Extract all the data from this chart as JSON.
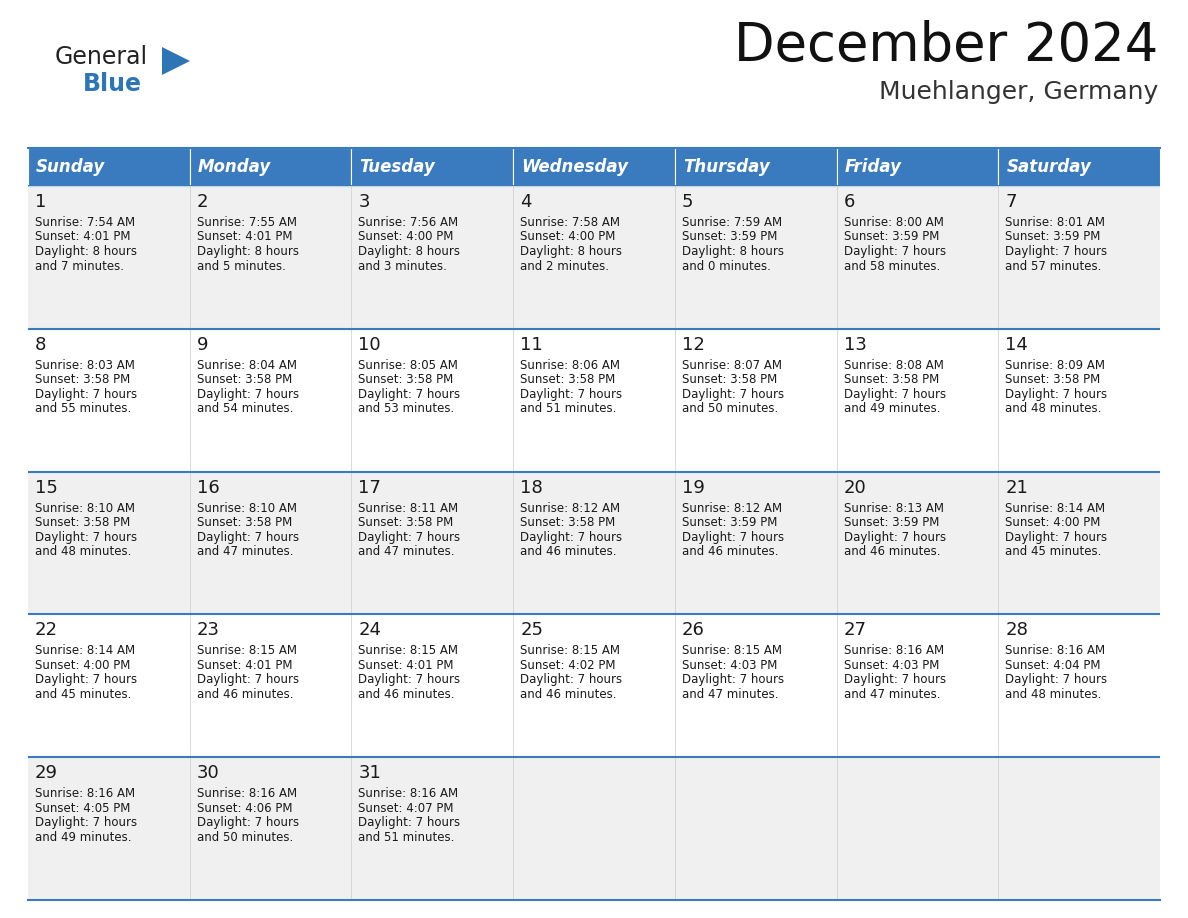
{
  "title": "December 2024",
  "subtitle": "Muehlanger, Germany",
  "header_color": "#3a7abf",
  "header_text_color": "#ffffff",
  "cell_bg_odd": "#f0f0f0",
  "cell_bg_even": "#ffffff",
  "separator_color": "#3a7abf",
  "text_color": "#1a1a1a",
  "day_headers": [
    "Sunday",
    "Monday",
    "Tuesday",
    "Wednesday",
    "Thursday",
    "Friday",
    "Saturday"
  ],
  "logo_general_color": "#222222",
  "logo_blue_color": "#2e75b6",
  "logo_triangle_color": "#2e75b6",
  "weeks": [
    [
      {
        "day": "1",
        "sunrise": "7:54 AM",
        "sunset": "4:01 PM",
        "daylight": "8 hours",
        "daylight2": "and 7 minutes."
      },
      {
        "day": "2",
        "sunrise": "7:55 AM",
        "sunset": "4:01 PM",
        "daylight": "8 hours",
        "daylight2": "and 5 minutes."
      },
      {
        "day": "3",
        "sunrise": "7:56 AM",
        "sunset": "4:00 PM",
        "daylight": "8 hours",
        "daylight2": "and 3 minutes."
      },
      {
        "day": "4",
        "sunrise": "7:58 AM",
        "sunset": "4:00 PM",
        "daylight": "8 hours",
        "daylight2": "and 2 minutes."
      },
      {
        "day": "5",
        "sunrise": "7:59 AM",
        "sunset": "3:59 PM",
        "daylight": "8 hours",
        "daylight2": "and 0 minutes."
      },
      {
        "day": "6",
        "sunrise": "8:00 AM",
        "sunset": "3:59 PM",
        "daylight": "7 hours",
        "daylight2": "and 58 minutes."
      },
      {
        "day": "7",
        "sunrise": "8:01 AM",
        "sunset": "3:59 PM",
        "daylight": "7 hours",
        "daylight2": "and 57 minutes."
      }
    ],
    [
      {
        "day": "8",
        "sunrise": "8:03 AM",
        "sunset": "3:58 PM",
        "daylight": "7 hours",
        "daylight2": "and 55 minutes."
      },
      {
        "day": "9",
        "sunrise": "8:04 AM",
        "sunset": "3:58 PM",
        "daylight": "7 hours",
        "daylight2": "and 54 minutes."
      },
      {
        "day": "10",
        "sunrise": "8:05 AM",
        "sunset": "3:58 PM",
        "daylight": "7 hours",
        "daylight2": "and 53 minutes."
      },
      {
        "day": "11",
        "sunrise": "8:06 AM",
        "sunset": "3:58 PM",
        "daylight": "7 hours",
        "daylight2": "and 51 minutes."
      },
      {
        "day": "12",
        "sunrise": "8:07 AM",
        "sunset": "3:58 PM",
        "daylight": "7 hours",
        "daylight2": "and 50 minutes."
      },
      {
        "day": "13",
        "sunrise": "8:08 AM",
        "sunset": "3:58 PM",
        "daylight": "7 hours",
        "daylight2": "and 49 minutes."
      },
      {
        "day": "14",
        "sunrise": "8:09 AM",
        "sunset": "3:58 PM",
        "daylight": "7 hours",
        "daylight2": "and 48 minutes."
      }
    ],
    [
      {
        "day": "15",
        "sunrise": "8:10 AM",
        "sunset": "3:58 PM",
        "daylight": "7 hours",
        "daylight2": "and 48 minutes."
      },
      {
        "day": "16",
        "sunrise": "8:10 AM",
        "sunset": "3:58 PM",
        "daylight": "7 hours",
        "daylight2": "and 47 minutes."
      },
      {
        "day": "17",
        "sunrise": "8:11 AM",
        "sunset": "3:58 PM",
        "daylight": "7 hours",
        "daylight2": "and 47 minutes."
      },
      {
        "day": "18",
        "sunrise": "8:12 AM",
        "sunset": "3:58 PM",
        "daylight": "7 hours",
        "daylight2": "and 46 minutes."
      },
      {
        "day": "19",
        "sunrise": "8:12 AM",
        "sunset": "3:59 PM",
        "daylight": "7 hours",
        "daylight2": "and 46 minutes."
      },
      {
        "day": "20",
        "sunrise": "8:13 AM",
        "sunset": "3:59 PM",
        "daylight": "7 hours",
        "daylight2": "and 46 minutes."
      },
      {
        "day": "21",
        "sunrise": "8:14 AM",
        "sunset": "4:00 PM",
        "daylight": "7 hours",
        "daylight2": "and 45 minutes."
      }
    ],
    [
      {
        "day": "22",
        "sunrise": "8:14 AM",
        "sunset": "4:00 PM",
        "daylight": "7 hours",
        "daylight2": "and 45 minutes."
      },
      {
        "day": "23",
        "sunrise": "8:15 AM",
        "sunset": "4:01 PM",
        "daylight": "7 hours",
        "daylight2": "and 46 minutes."
      },
      {
        "day": "24",
        "sunrise": "8:15 AM",
        "sunset": "4:01 PM",
        "daylight": "7 hours",
        "daylight2": "and 46 minutes."
      },
      {
        "day": "25",
        "sunrise": "8:15 AM",
        "sunset": "4:02 PM",
        "daylight": "7 hours",
        "daylight2": "and 46 minutes."
      },
      {
        "day": "26",
        "sunrise": "8:15 AM",
        "sunset": "4:03 PM",
        "daylight": "7 hours",
        "daylight2": "and 47 minutes."
      },
      {
        "day": "27",
        "sunrise": "8:16 AM",
        "sunset": "4:03 PM",
        "daylight": "7 hours",
        "daylight2": "and 47 minutes."
      },
      {
        "day": "28",
        "sunrise": "8:16 AM",
        "sunset": "4:04 PM",
        "daylight": "7 hours",
        "daylight2": "and 48 minutes."
      }
    ],
    [
      {
        "day": "29",
        "sunrise": "8:16 AM",
        "sunset": "4:05 PM",
        "daylight": "7 hours",
        "daylight2": "and 49 minutes."
      },
      {
        "day": "30",
        "sunrise": "8:16 AM",
        "sunset": "4:06 PM",
        "daylight": "7 hours",
        "daylight2": "and 50 minutes."
      },
      {
        "day": "31",
        "sunrise": "8:16 AM",
        "sunset": "4:07 PM",
        "daylight": "7 hours",
        "daylight2": "and 51 minutes."
      },
      null,
      null,
      null,
      null
    ]
  ]
}
